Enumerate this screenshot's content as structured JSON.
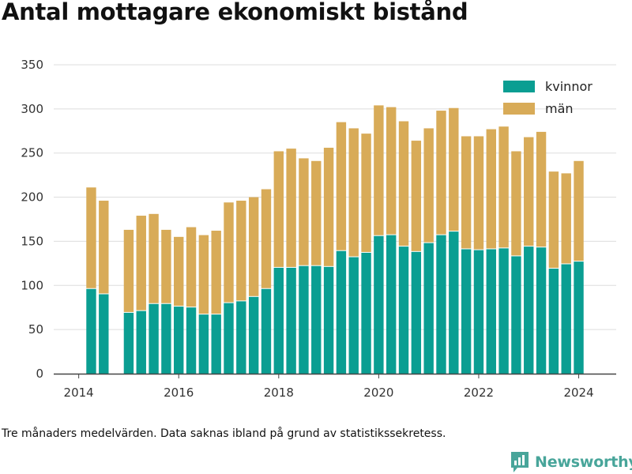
{
  "title": "Antal mottagare ekonomiskt bistånd",
  "footnote": "Tre månaders medelvärden. Data saknas ibland på grund av statistikssekretess.",
  "brand": "Newsworthy",
  "colors": {
    "kvinnor": "#0a9e92",
    "man": "#d8ab58",
    "grid": "#dddddd",
    "axis": "#444444"
  },
  "icons": {
    "brand": "newsworthy-logo-icon"
  },
  "chart_data": {
    "type": "bar",
    "stacked": true,
    "x_label_ticks": [
      "2014",
      "2016",
      "2018",
      "2020",
      "2022",
      "2024"
    ],
    "y_ticks": [
      0,
      50,
      100,
      150,
      200,
      250,
      300,
      350
    ],
    "ylim": [
      0,
      350
    ],
    "xlim": [
      2013.5,
      2024.75
    ],
    "grid": true,
    "legend_position": "top-right",
    "series": [
      {
        "name": "kvinnor",
        "values": [
          96,
          90,
          69,
          71,
          79,
          79,
          76,
          75,
          67,
          67,
          80,
          82,
          87,
          96,
          120,
          120,
          122,
          122,
          121,
          139,
          132,
          137,
          156,
          157,
          144,
          138,
          148,
          157,
          161,
          141,
          140,
          141,
          142,
          133,
          144,
          143,
          119,
          124,
          127
        ]
      },
      {
        "name": "män",
        "values": [
          115,
          106,
          94,
          108,
          102,
          84,
          79,
          91,
          90,
          95,
          114,
          114,
          113,
          113,
          132,
          135,
          122,
          119,
          135,
          146,
          146,
          135,
          148,
          145,
          142,
          126,
          130,
          141,
          140,
          128,
          129,
          136,
          138,
          119,
          124,
          131,
          110,
          103,
          114
        ]
      }
    ],
    "x": [
      2014.25,
      2014.5,
      2015.0,
      2015.25,
      2015.5,
      2015.75,
      2016.0,
      2016.25,
      2016.5,
      2016.75,
      2017.0,
      2017.25,
      2017.5,
      2017.75,
      2018.0,
      2018.25,
      2018.5,
      2018.75,
      2019.0,
      2019.25,
      2019.5,
      2019.75,
      2020.0,
      2020.25,
      2020.5,
      2020.75,
      2021.0,
      2021.25,
      2021.5,
      2021.75,
      2022.0,
      2022.25,
      2022.5,
      2022.75,
      2023.0,
      2023.25,
      2023.5,
      2023.75,
      2024.0
    ]
  }
}
